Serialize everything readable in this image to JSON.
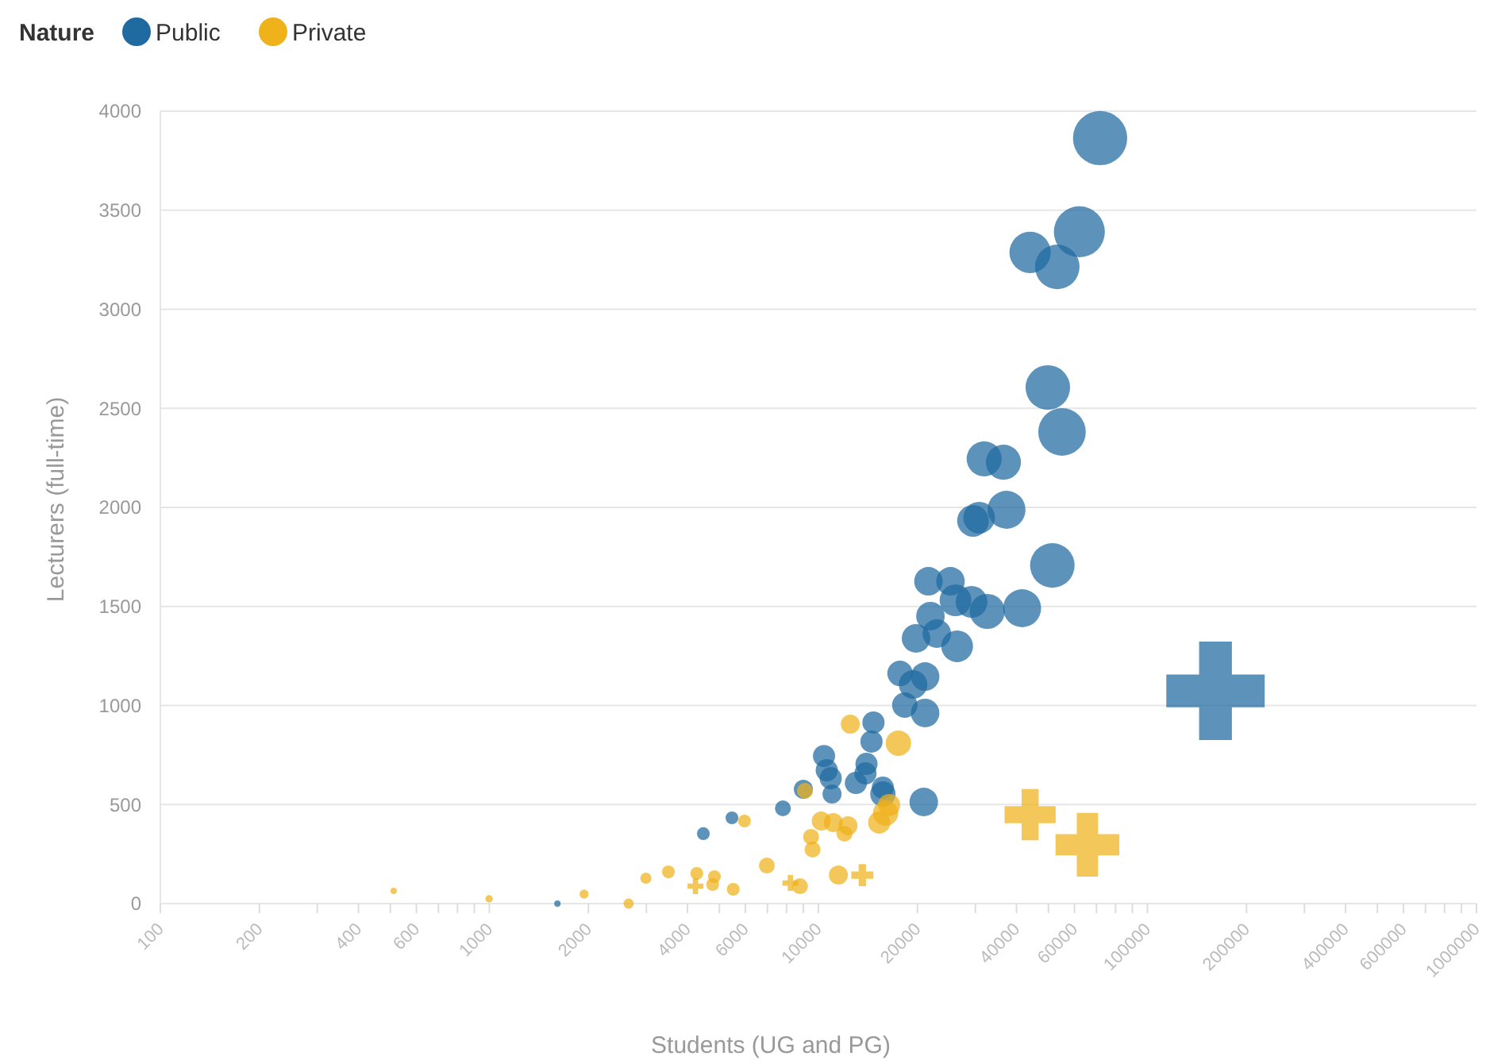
{
  "chart_data": {
    "type": "bubble",
    "xlabel": "Students (UG and PG)",
    "ylabel": "Lecturers (full-time)",
    "legend_title": "Nature",
    "legend": "top left",
    "grid": "y",
    "log": "x",
    "marker": "circle",
    "xlim": [
      100,
      1000000
    ],
    "ylim": [
      0,
      4000
    ],
    "xticks": [
      100,
      200,
      {
        "value": 300,
        "label": null
      },
      400,
      {
        "value": 500,
        "label": null
      },
      600,
      {
        "value": 700,
        "label": null
      },
      {
        "value": 800,
        "label": null
      },
      {
        "value": 900,
        "label": null
      },
      1000,
      2000,
      {
        "value": 3000,
        "label": null
      },
      4000,
      {
        "value": 5000,
        "label": null
      },
      6000,
      {
        "value": 7000,
        "label": null
      },
      {
        "value": 8000,
        "label": null
      },
      {
        "value": 9000,
        "label": null
      },
      10000,
      20000,
      {
        "value": 30000,
        "label": null
      },
      40000,
      {
        "value": 50000,
        "label": null
      },
      60000,
      {
        "value": 70000,
        "label": null
      },
      {
        "value": 80000,
        "label": null
      },
      {
        "value": 90000,
        "label": null
      },
      100000,
      200000,
      {
        "value": 300000,
        "label": null
      },
      400000,
      {
        "value": 500000,
        "label": null
      },
      600000,
      {
        "value": 700000,
        "label": null
      },
      {
        "value": 800000,
        "label": null
      },
      {
        "value": 900000,
        "label": null
      },
      1000000
    ],
    "yticks": [
      0,
      500,
      1000,
      1500,
      2000,
      2500,
      3000,
      3500,
      4000
    ],
    "series": [
      {
        "name": "Public",
        "color": "#1f6aa0",
        "x": [
          71800,
          62100,
          44000,
          53200,
          49800,
          55000,
          31900,
          36500,
          37300,
          29500,
          30800,
          51400,
          21600,
          25200,
          26100,
          29200,
          32600,
          41600,
          21900,
          26400,
          22900,
          19800,
          17700,
          19400,
          21100,
          18300,
          21100,
          14700,
          14500,
          14000,
          13900,
          10400,
          10600,
          10900,
          11000,
          13000,
          15700,
          15700,
          20900,
          9000,
          7800,
          5460,
          4470,
          1610
        ],
        "values": [
          3864,
          3391,
          3287,
          3214,
          2605,
          2381,
          2245,
          2228,
          1988,
          1932,
          1948,
          1707,
          1627,
          1627,
          1531,
          1523,
          1475,
          1491,
          1451,
          1299,
          1363,
          1339,
          1162,
          1106,
          1146,
          1002,
          962,
          914,
          818,
          705,
          657,
          745,
          673,
          633,
          553,
          609,
          585,
          553,
          513,
          577,
          481,
          433,
          353,
          0
        ],
        "sizes": [
          0.43,
          0.38,
          0.25,
          0.29,
          0.29,
          0.33,
          0.18,
          0.18,
          0.21,
          0.147,
          0.147,
          0.29,
          0.119,
          0.119,
          0.147,
          0.147,
          0.18,
          0.21,
          0.119,
          0.147,
          0.119,
          0.119,
          0.094,
          0.119,
          0.119,
          0.094,
          0.119,
          0.072,
          0.072,
          0.072,
          0.072,
          0.072,
          0.072,
          0.072,
          0.053,
          0.072,
          0.072,
          0.094,
          0.119,
          0.053,
          0.037,
          0.024,
          0.024,
          0.006
        ]
      },
      {
        "name": "Private",
        "color": "#f0b21b",
        "x": [
          12500,
          17500,
          16000,
          16400,
          9100,
          10200,
          11100,
          12300,
          15300,
          9500,
          9600,
          12000,
          5960,
          11500,
          6970,
          8790,
          5510,
          4830,
          4270,
          4770,
          3500,
          2990,
          2650,
          1940,
          998,
          512
        ],
        "values": [
          906,
          810,
          457,
          497,
          569,
          417,
          409,
          393,
          409,
          337,
          273,
          353,
          417,
          144,
          192,
          88,
          72,
          136,
          152,
          96,
          160,
          128,
          0,
          48,
          24,
          64
        ],
        "sizes": [
          0.053,
          0.094,
          0.094,
          0.072,
          0.037,
          0.053,
          0.053,
          0.053,
          0.072,
          0.037,
          0.037,
          0.037,
          0.024,
          0.053,
          0.037,
          0.037,
          0.024,
          0.024,
          0.024,
          0.024,
          0.024,
          0.018,
          0.015,
          0.012,
          0.008,
          0.006
        ]
      },
      {
        "color": "#1f6aa0",
        "marker": "cross",
        "x": [
          161000
        ],
        "values": [
          1074
        ],
        "sizes": [
          1
        ]
      },
      {
        "color": "#f0b21b",
        "marker": "cross",
        "x": [
          44000,
          65700,
          13600,
          8220,
          4230
        ],
        "values": [
          449,
          297,
          144,
          104,
          88
        ],
        "sizes": [
          0.27,
          0.42,
          0.05,
          0.026,
          0.026
        ]
      }
    ]
  }
}
